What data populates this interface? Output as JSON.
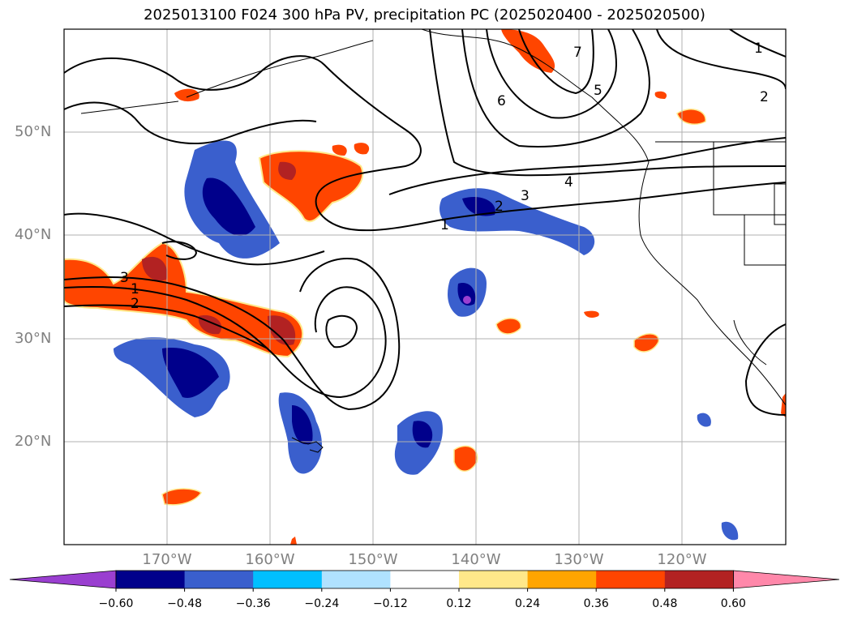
{
  "title": "2025013100 F024 300 hPa PV, precipitation PC (2025020400 - 2025020500)",
  "map": {
    "lat_labels": [
      {
        "text": "50°N",
        "lat": 50
      },
      {
        "text": "40°N",
        "lat": 40
      },
      {
        "text": "30°N",
        "lat": 30
      },
      {
        "text": "20°N",
        "lat": 20
      }
    ],
    "lon_labels": [
      {
        "text": "170°W",
        "lon": -170
      },
      {
        "text": "160°W",
        "lon": -160
      },
      {
        "text": "150°W",
        "lon": -150
      },
      {
        "text": "140°W",
        "lon": -140
      },
      {
        "text": "130°W",
        "lon": -130
      },
      {
        "text": "120°W",
        "lon": -120
      }
    ],
    "extent": {
      "lon_min": -180,
      "lon_max": -110,
      "lat_min": 10,
      "lat_max": 60
    },
    "grid": true,
    "pv_contour_labels": [
      "1",
      "2",
      "3",
      "4",
      "5",
      "6",
      "7",
      "1",
      "2",
      "3",
      "1",
      "2"
    ]
  },
  "colorbar": {
    "ticks": [
      "−0.60",
      "−0.48",
      "−0.36",
      "−0.24",
      "−0.12",
      "0.12",
      "0.24",
      "0.36",
      "0.48",
      "0.60"
    ],
    "colors": [
      "#9a3fd0",
      "#00008b",
      "#3a5fcd",
      "#00bfff",
      "#b0e2ff",
      "#ffffff",
      "#ffe88a",
      "#ffa500",
      "#ff4500",
      "#b22222",
      "#ff88aa"
    ]
  }
}
